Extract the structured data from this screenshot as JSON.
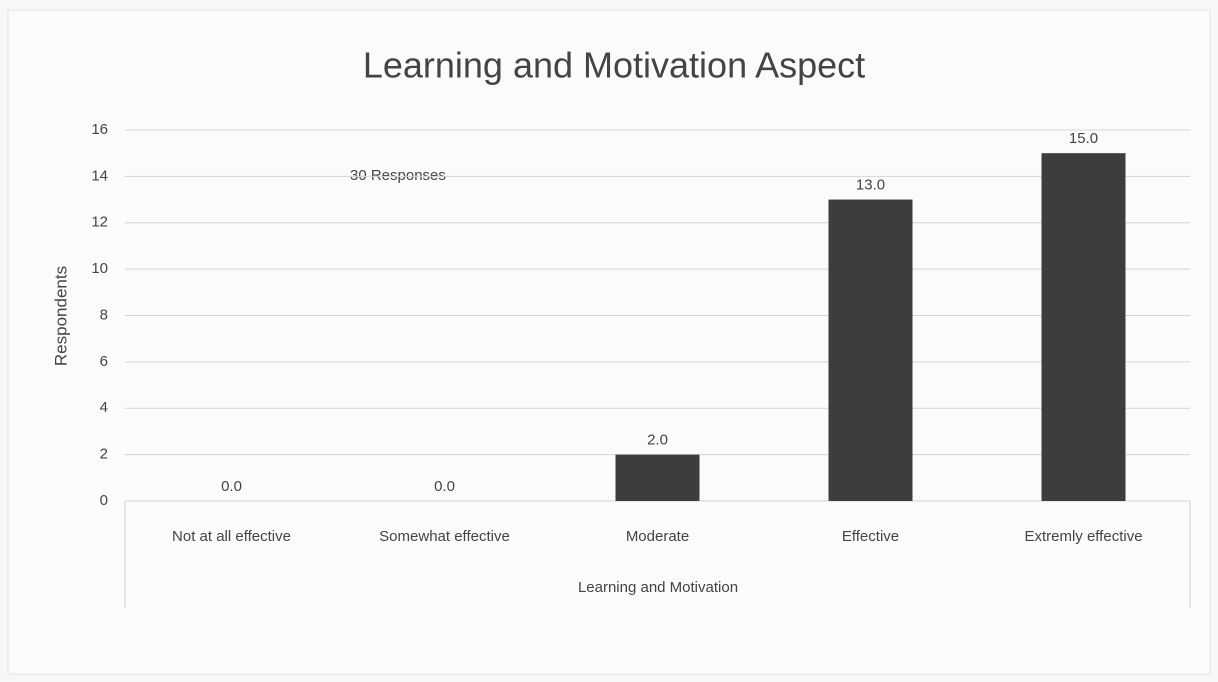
{
  "chart_data": {
    "type": "bar",
    "title": "Learning and Motivation Aspect",
    "x_label": "Learning and Motivation",
    "y_label": "Respondents",
    "annotation": "30 Responses",
    "categories": [
      "Not at all effective",
      "Somewhat effective",
      "Moderate",
      "Effective",
      "Extremly effective"
    ],
    "values": [
      0,
      0,
      2,
      13,
      15
    ],
    "value_labels": [
      "0.0",
      "0.0",
      "2.0",
      "13.0",
      "15.0"
    ],
    "color": "#3d3d3d",
    "ylim": [
      0,
      16
    ],
    "yticks": [
      0,
      2,
      4,
      6,
      8,
      10,
      12,
      14,
      16
    ],
    "grid": true
  }
}
